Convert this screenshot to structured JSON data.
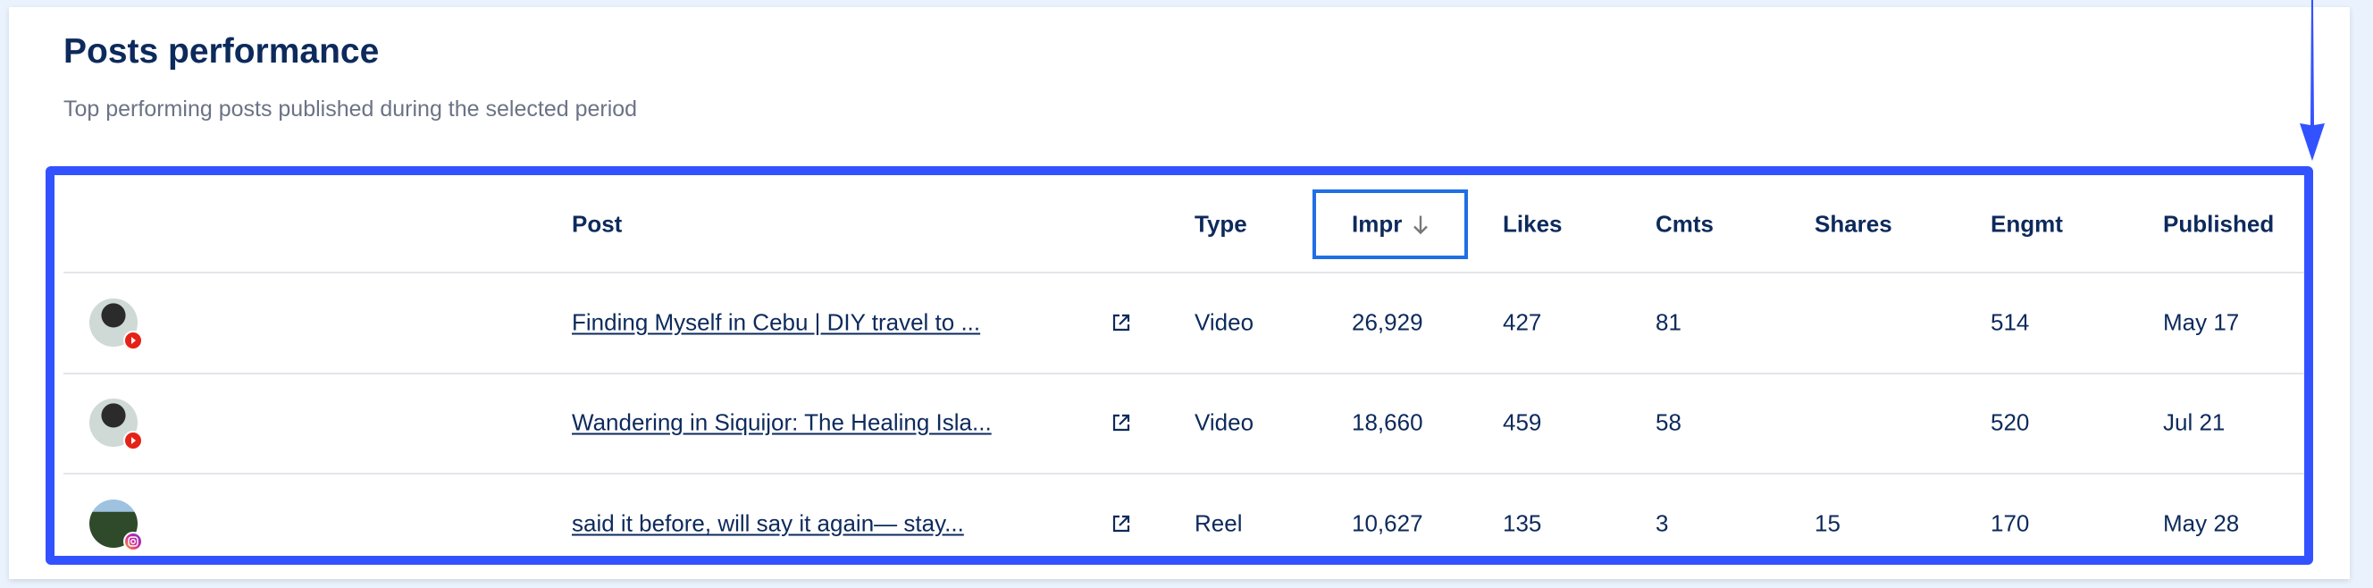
{
  "title": "Posts performance",
  "subtitle": "Top performing posts published during the selected period",
  "columns": {
    "post": "Post",
    "type": "Type",
    "impr": "Impr",
    "likes": "Likes",
    "cmts": "Cmts",
    "shares": "Shares",
    "engmt": "Engmt",
    "published": "Published"
  },
  "sort": {
    "column": "Impr",
    "direction": "descending",
    "icon": "arrow-down-icon"
  },
  "rows": [
    {
      "platform": "youtube",
      "post": "Finding Myself in Cebu | DIY travel to ...",
      "type": "Video",
      "impr": "26,929",
      "likes": "427",
      "cmts": "81",
      "shares": "",
      "engmt": "514",
      "published": "May 17"
    },
    {
      "platform": "youtube",
      "post": "Wandering in Siquijor: The Healing Isla...",
      "type": "Video",
      "impr": "18,660",
      "likes": "459",
      "cmts": "58",
      "shares": "",
      "engmt": "520",
      "published": "Jul 21"
    },
    {
      "platform": "instagram",
      "post": "said it before, will say it again— stay...",
      "type": "Reel",
      "impr": "10,627",
      "likes": "135",
      "cmts": "3",
      "shares": "15",
      "engmt": "170",
      "published": "May 28"
    }
  ],
  "colors": {
    "highlight": "#3352ff",
    "sort_box": "#1f6fe5",
    "text": "#0d2a5c",
    "youtube": "#e62117",
    "instagram": "#c13584"
  }
}
